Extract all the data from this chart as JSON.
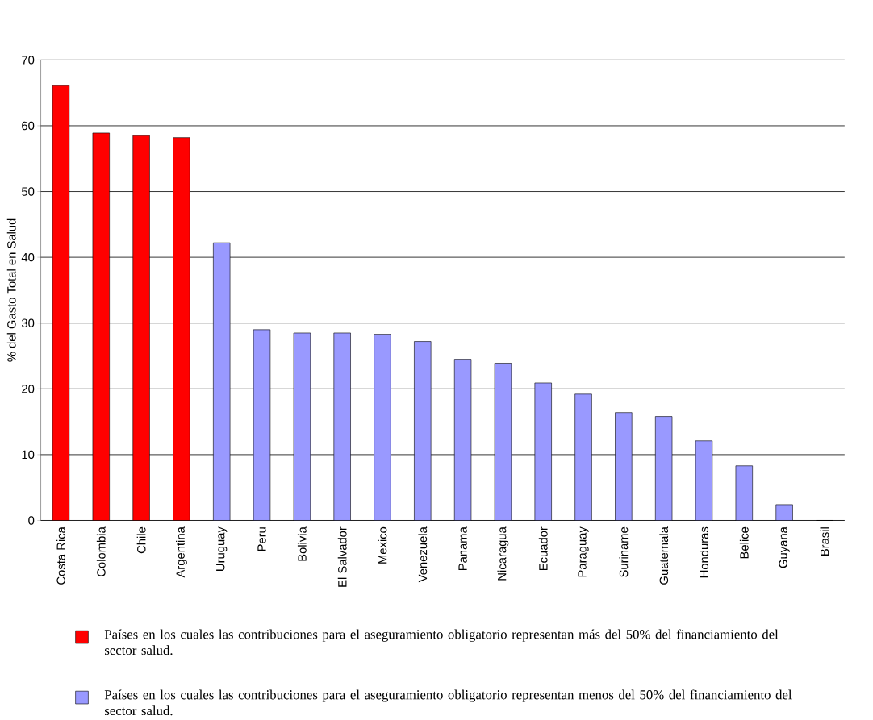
{
  "chart_data": {
    "type": "bar",
    "ylabel": "% del Gasto Total en Salud",
    "categories": [
      "Costa Rica",
      "Colombia",
      "Chile",
      "Argentina",
      "Uruguay",
      "Peru",
      "Bolivia",
      "El Salvador",
      "Mexico",
      "Venezuela",
      "Panama",
      "Nicaragua",
      "Ecuador",
      "Paraguay",
      "Suriname",
      "Guatemala",
      "Honduras",
      "Belice",
      "Guyana",
      "Brasil"
    ],
    "series": [
      {
        "name": "Países en los cuales las contribuciones para el aseguramiento obligatorio representan más del 50% del financiamiento del sector salud.",
        "color": "#ff0000",
        "values": [
          66.1,
          58.9,
          58.5,
          58.2,
          null,
          null,
          null,
          null,
          null,
          null,
          null,
          null,
          null,
          null,
          null,
          null,
          null,
          null,
          null,
          null
        ]
      },
      {
        "name": "Países en los cuales las contribuciones para el aseguramiento obligatorio representan menos del 50% del financiamiento del sector salud.",
        "color": "#9999ff",
        "values": [
          null,
          null,
          null,
          null,
          42.2,
          29.0,
          28.5,
          28.5,
          28.3,
          27.2,
          24.5,
          23.9,
          20.9,
          19.2,
          16.4,
          15.8,
          12.1,
          8.3,
          2.4,
          0
        ]
      }
    ],
    "ylim": [
      0,
      70
    ],
    "yticks": [
      0,
      10,
      20,
      30,
      40,
      50,
      60,
      70
    ],
    "grid": "y",
    "legend": "bottom"
  }
}
